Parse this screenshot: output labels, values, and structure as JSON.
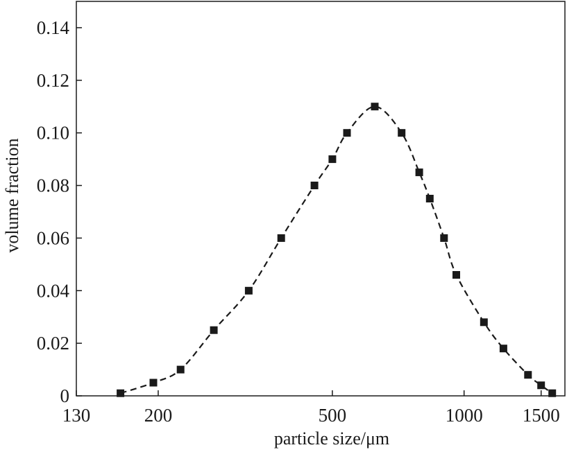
{
  "chart_data": {
    "type": "line",
    "xscale": "log",
    "xlabel": "particle size/μm",
    "ylabel": "volume fraction",
    "xlim": [
      130,
      1700
    ],
    "ylim": [
      0,
      0.15
    ],
    "xticks": [
      130,
      200,
      500,
      1000,
      1500
    ],
    "xtick_labels": [
      "130",
      "200",
      "500",
      "1000",
      "1500"
    ],
    "yticks": [
      0,
      0.02,
      0.04,
      0.06,
      0.08,
      0.1,
      0.12,
      0.14
    ],
    "ytick_labels": [
      "0",
      "0.02",
      "0.04",
      "0.06",
      "0.08",
      "0.10",
      "0.12",
      "0.14"
    ],
    "grid": false,
    "series": [
      {
        "name": "volume fraction",
        "line_style": "dashed",
        "marker": "square",
        "color": "#1a1a1a",
        "x": [
          164,
          195,
          225,
          268,
          322,
          382,
          455,
          500,
          540,
          625,
          720,
          790,
          835,
          900,
          960,
          1110,
          1230,
          1400,
          1500,
          1590
        ],
        "y": [
          0.001,
          0.005,
          0.01,
          0.025,
          0.04,
          0.06,
          0.08,
          0.09,
          0.1,
          0.11,
          0.1,
          0.085,
          0.075,
          0.06,
          0.046,
          0.028,
          0.018,
          0.008,
          0.004,
          0.001
        ]
      }
    ]
  }
}
